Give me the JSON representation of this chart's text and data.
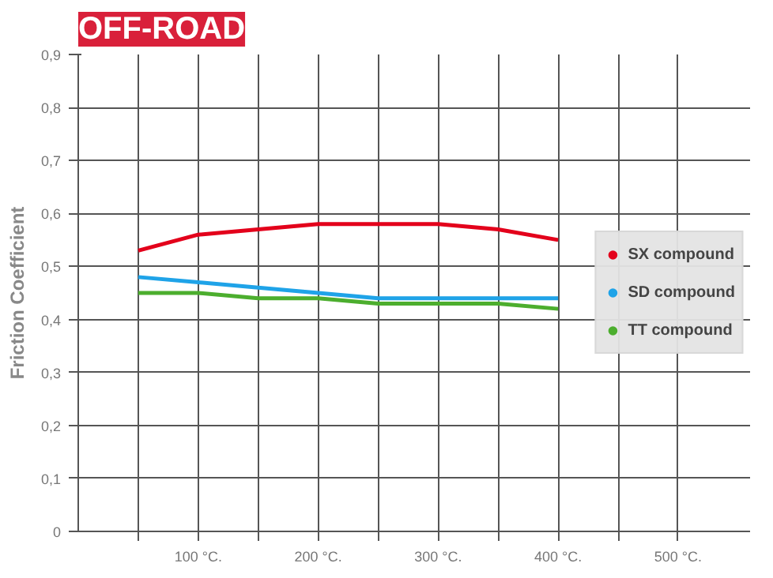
{
  "chart_data": {
    "type": "line",
    "title": "OFF-ROAD",
    "ylabel": "Friction Coefficient",
    "x": [
      50,
      100,
      150,
      200,
      250,
      300,
      350,
      400
    ],
    "series": [
      {
        "name": "SX compound",
        "color": "#e3001b",
        "values": [
          0.53,
          0.56,
          0.57,
          0.58,
          0.58,
          0.58,
          0.57,
          0.55
        ]
      },
      {
        "name": "SD compound",
        "color": "#1fa3e8",
        "values": [
          0.48,
          0.47,
          0.46,
          0.45,
          0.44,
          0.44,
          0.44,
          0.44
        ]
      },
      {
        "name": "TT compound",
        "color": "#4cae2e",
        "values": [
          0.45,
          0.45,
          0.44,
          0.44,
          0.43,
          0.43,
          0.43,
          0.42
        ]
      }
    ],
    "xlim": [
      0,
      560
    ],
    "xticks": [
      {
        "value": 50,
        "label": null
      },
      {
        "value": 100,
        "label": "100 °C."
      },
      {
        "value": 150,
        "label": null
      },
      {
        "value": 200,
        "label": "200 °C."
      },
      {
        "value": 250,
        "label": null
      },
      {
        "value": 300,
        "label": "300 °C."
      },
      {
        "value": 350,
        "label": null
      },
      {
        "value": 400,
        "label": "400 °C."
      },
      {
        "value": 450,
        "label": null
      },
      {
        "value": 500,
        "label": "500 °C."
      }
    ],
    "ylim": [
      0,
      0.9
    ],
    "yticks": [
      {
        "value": 0,
        "label": "0"
      },
      {
        "value": 0.1,
        "label": "0,1"
      },
      {
        "value": 0.2,
        "label": "0,2"
      },
      {
        "value": 0.3,
        "label": "0,3"
      },
      {
        "value": 0.4,
        "label": "0,4"
      },
      {
        "value": 0.5,
        "label": "0,5"
      },
      {
        "value": 0.6,
        "label": "0,6"
      },
      {
        "value": 0.7,
        "label": "0,7"
      },
      {
        "value": 0.8,
        "label": "0,8"
      },
      {
        "value": 0.9,
        "label": "0,9"
      }
    ],
    "grid": true,
    "legend": "right",
    "marker": "none",
    "line_style": "solid"
  }
}
